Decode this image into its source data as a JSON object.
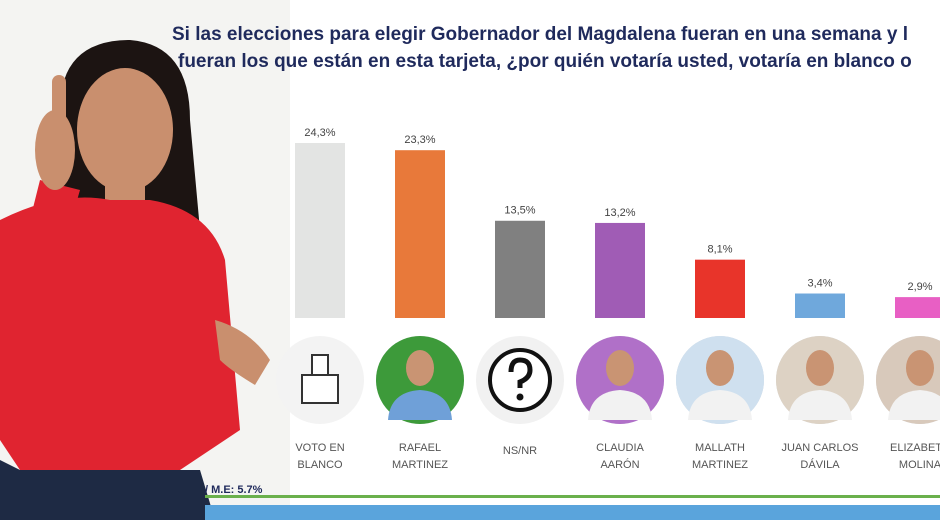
{
  "chart_data": {
    "type": "bar",
    "title_lines": [
      "Si las elecciones para elegir Gobernador del Magdalena fueran en una semana y l",
      "fueran los que están en esta tarjeta, ¿por quién votaría usted, votaría en blanco o"
    ],
    "categories": [
      [
        "VOTO EN",
        "BLANCO"
      ],
      [
        "RAFAEL",
        "MARTINEZ"
      ],
      [
        "NS/NR"
      ],
      [
        "CLAUDIA",
        "AARÓN"
      ],
      [
        "MALLATH",
        "MARTINEZ"
      ],
      [
        "JUAN CARLOS",
        "DÁVILA"
      ],
      [
        "ELIZABETH",
        "MOLINA"
      ]
    ],
    "values": [
      24.3,
      23.3,
      13.5,
      13.2,
      8.1,
      3.4,
      2.9
    ],
    "value_labels": [
      "24,3%",
      "23,3%",
      "13,5%",
      "13,2%",
      "8,1%",
      "3,4%",
      "2,9%"
    ],
    "colors": [
      "#e3e4e3",
      "#e8793a",
      "#808080",
      "#a05cb5",
      "#e8342a",
      "#6fa8dc",
      "#e85fc4"
    ],
    "footnote": "/ M.E: 5.7%"
  }
}
